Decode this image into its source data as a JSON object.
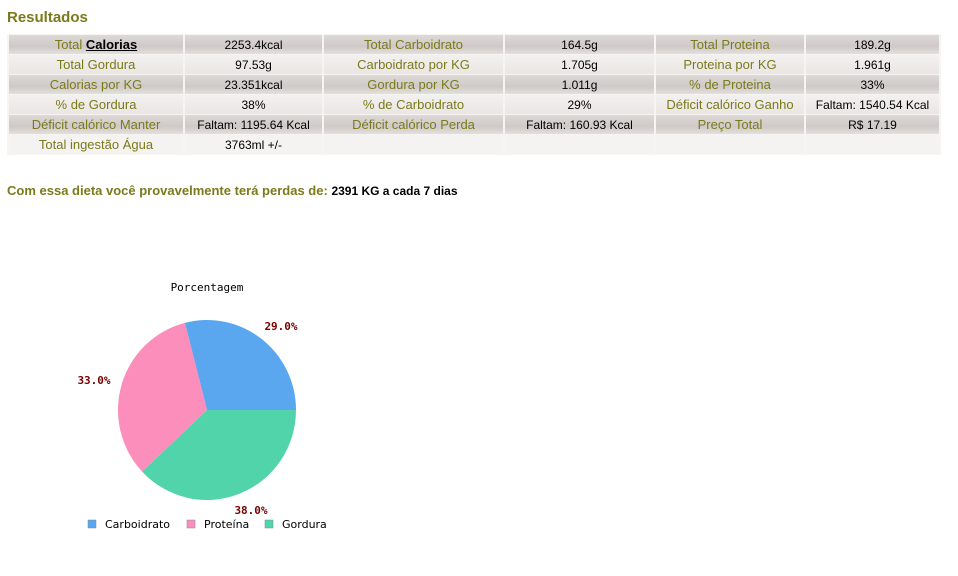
{
  "section_title": "Resultados",
  "table": {
    "rows": [
      [
        {
          "label_prefix": "Total ",
          "label_link": "Calorias",
          "value": "2253.4kcal"
        },
        {
          "label": "Total Carboidrato",
          "value": "164.5g"
        },
        {
          "label": "Total Proteina",
          "value": "189.2g"
        }
      ],
      [
        {
          "label": "Total Gordura",
          "value": "97.53g"
        },
        {
          "label": "Carboidrato por KG",
          "value": "1.705g"
        },
        {
          "label": "Proteina por KG",
          "value": "1.961g"
        }
      ],
      [
        {
          "label": "Calorias por KG",
          "value": "23.351kcal"
        },
        {
          "label": "Gordura por KG",
          "value": "1.011g"
        },
        {
          "label": "% de Proteina",
          "value": "33%"
        }
      ],
      [
        {
          "label": "% de Gordura",
          "value": "38%"
        },
        {
          "label": "% de Carboidrato",
          "value": "29%"
        },
        {
          "label": "Déficit calórico Ganho",
          "value": "Faltam: 1540.54 Kcal"
        }
      ],
      [
        {
          "label": "Déficit calórico Manter",
          "value": "Faltam: 1195.64 Kcal"
        },
        {
          "label": "Déficit calórico Perda",
          "value": "Faltam: 160.93 Kcal"
        },
        {
          "label": "Preço Total",
          "value": "R$ 17.19"
        }
      ],
      [
        {
          "label": "Total ingestão Água",
          "value": "3763ml +/-"
        }
      ]
    ]
  },
  "summary": {
    "text": "Com essa dieta você provavelmente terá perdas de:",
    "value": "2391 KG a cada 7 dias"
  },
  "chart_data": {
    "type": "pie",
    "title": "Porcentagem",
    "categories": [
      "Carboidrato",
      "Proteína",
      "Gordura"
    ],
    "values": [
      29.0,
      33.0,
      38.0
    ],
    "labels": [
      "29.0%",
      "33.0%",
      "38.0%"
    ],
    "colors": [
      "#5aa7f0",
      "#fb8eba",
      "#52d4aa"
    ],
    "legend": "bottom"
  }
}
